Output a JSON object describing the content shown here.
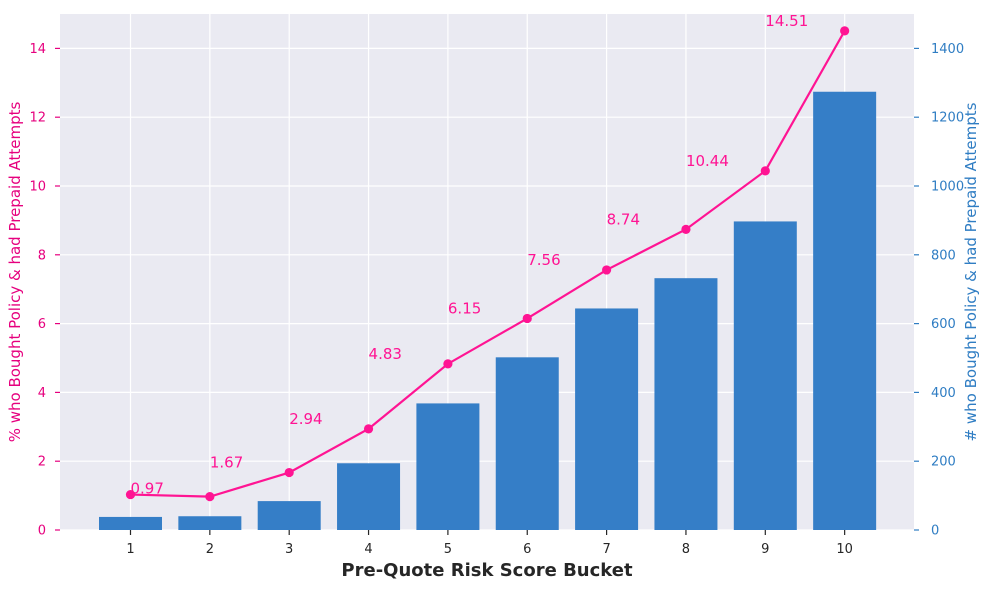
{
  "chart_data": {
    "type": "bar",
    "xlabel": "Pre-Quote Risk Score Bucket",
    "ylabel_left": "% who Bought Policy & had Prepaid Attempts",
    "ylabel_right": "# who Bought Policy & had Prepaid Attempts",
    "categories": [
      "1",
      "2",
      "3",
      "4",
      "5",
      "6",
      "7",
      "8",
      "9",
      "10"
    ],
    "series": [
      {
        "type": "bar",
        "axis": "right",
        "values": [
          38,
          40,
          84,
          194,
          368,
          502,
          644,
          732,
          897,
          1274
        ]
      },
      {
        "type": "line",
        "axis": "left",
        "values": [
          1.03,
          0.97,
          1.67,
          2.94,
          4.83,
          6.15,
          7.56,
          8.74,
          10.44,
          14.51
        ],
        "data_labels": [
          "0.97",
          "1.67",
          "2.94",
          "4.83",
          "6.15",
          "7.56",
          "8.74",
          "10.44",
          "14.51"
        ]
      }
    ],
    "y_left": {
      "min": 0,
      "max": 15,
      "ticks": [
        "0",
        "2",
        "4",
        "6",
        "8",
        "10",
        "12",
        "14"
      ]
    },
    "y_right": {
      "min": 0,
      "max": 1500,
      "ticks": [
        "0",
        "200",
        "400",
        "600",
        "800",
        "1000",
        "1200",
        "1400"
      ]
    },
    "grid": true,
    "colors": {
      "bar": "#357ec7",
      "line": "#ff1493",
      "left_axis": "#e6007e",
      "right_axis": "#2f7dc3",
      "plot_bg": "#eaeaf2",
      "grid": "#ffffff"
    }
  }
}
